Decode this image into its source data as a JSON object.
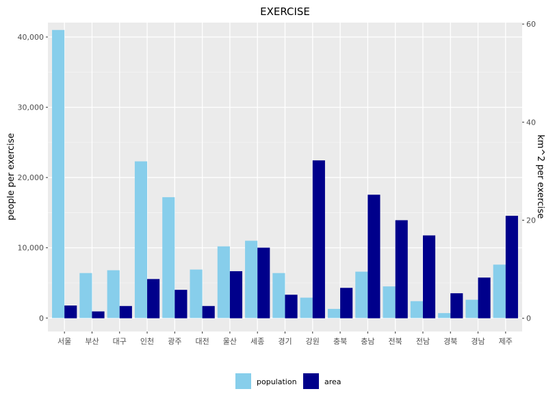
{
  "chart_data": {
    "type": "bar",
    "title": "EXERCISE",
    "ylabel_left": "people per exercise",
    "ylabel_right": "km^2 per exercise",
    "categories": [
      "서울",
      "부산",
      "대구",
      "인천",
      "광주",
      "대전",
      "울산",
      "세종",
      "경기",
      "강원",
      "충북",
      "충남",
      "전북",
      "전남",
      "경북",
      "경남",
      "제주"
    ],
    "series": [
      {
        "name": "population",
        "axis": "left",
        "color": "#87CEEB",
        "values": [
          41000,
          6400,
          6800,
          22300,
          17200,
          6900,
          10200,
          11000,
          6400,
          2900,
          1300,
          6600,
          4500,
          2400,
          700,
          2600,
          7600
        ]
      },
      {
        "name": "area",
        "axis": "right",
        "color": "#00008B",
        "values": [
          2.6,
          1.4,
          2.5,
          8.0,
          5.8,
          2.5,
          9.6,
          14.4,
          4.8,
          32.2,
          6.2,
          25.2,
          20.0,
          16.9,
          5.1,
          8.3,
          20.9
        ]
      }
    ],
    "y_left": {
      "range": [
        -1920,
        42050
      ],
      "ticks": [
        0,
        10000,
        20000,
        30000,
        40000
      ],
      "tick_labels": [
        "0",
        "10,000",
        "20,000",
        "30,000",
        "40,000"
      ]
    },
    "y_right": {
      "range": [
        -2.7,
        60.3
      ],
      "ticks": [
        0,
        20,
        40,
        60
      ],
      "tick_labels": [
        "0",
        "20",
        "40",
        "60"
      ]
    },
    "grid": true,
    "legend_position": "bottom",
    "panel_color": "#EBEBEB"
  }
}
